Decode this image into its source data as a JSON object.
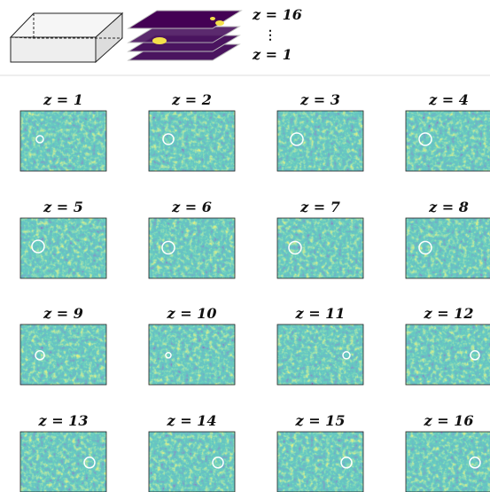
{
  "legend": {
    "top_label": "z = 16",
    "dots": "⋮",
    "bottom_label": "z = 1"
  },
  "panels": [
    {
      "title": "z = 1"
    },
    {
      "title": "z = 2"
    },
    {
      "title": "z = 3"
    },
    {
      "title": "z = 4"
    },
    {
      "title": "z = 5"
    },
    {
      "title": "z = 6"
    },
    {
      "title": "z = 7"
    },
    {
      "title": "z = 8"
    },
    {
      "title": "z = 9"
    },
    {
      "title": "z = 10"
    },
    {
      "title": "z = 11"
    },
    {
      "title": "z = 12"
    },
    {
      "title": "z = 13"
    },
    {
      "title": "z = 14"
    },
    {
      "title": "z = 15"
    },
    {
      "title": "z = 16"
    }
  ]
}
